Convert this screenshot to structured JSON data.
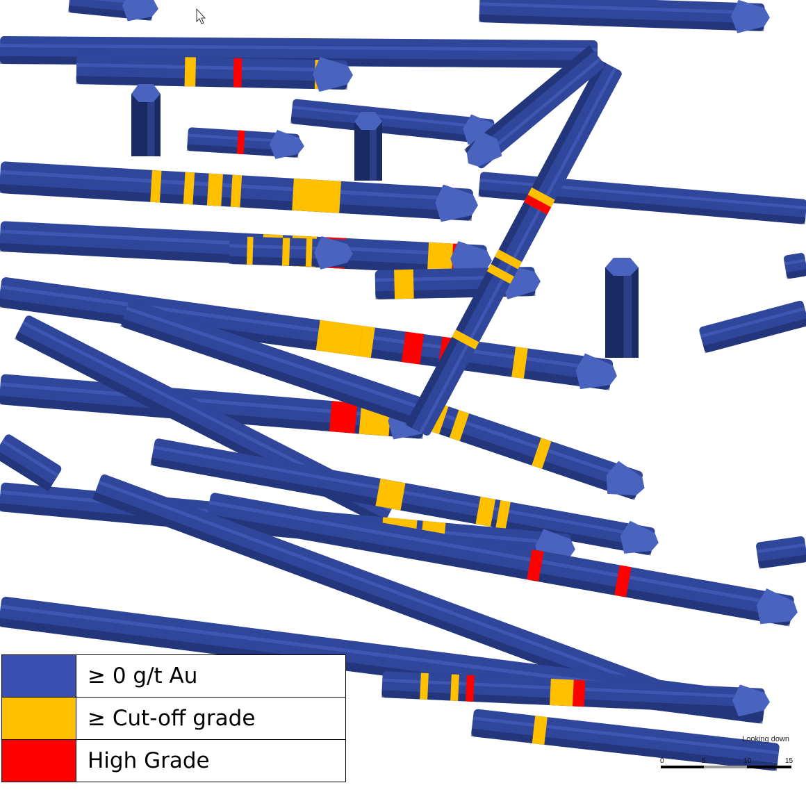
{
  "colors": {
    "background": "#ffffff",
    "hole_body": "#2f469a",
    "hole_dark": "#1a2a63",
    "hole_cap": "#4a63bf",
    "cutoff": "#ffc000",
    "high": "#ff0000"
  },
  "legend": {
    "items": [
      {
        "label": "≥ 0 g/t Au",
        "color": "#3a4fb0"
      },
      {
        "label": "≥ Cut-off grade",
        "color": "#ffc000"
      },
      {
        "label": "High Grade",
        "color": "#ff0000"
      }
    ]
  },
  "scale_bar": {
    "caption": "Looking down",
    "ticks": [
      "0",
      "5",
      "10",
      "15"
    ]
  },
  "icons": {
    "cursor": "mouse-pointer-icon"
  }
}
